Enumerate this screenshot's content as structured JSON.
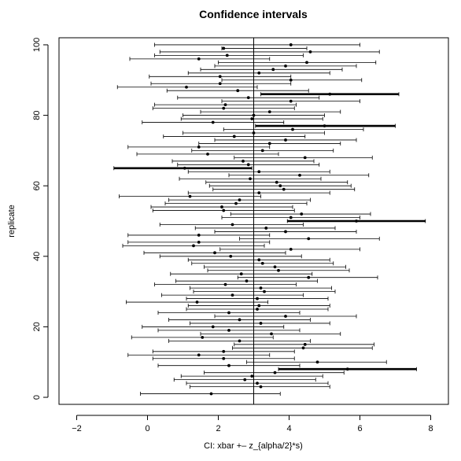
{
  "chart_data": {
    "type": "interval",
    "title": "Confidence intervals",
    "xlabel": "CI:  xbar +– z_{alpha/2}*s)",
    "ylabel": "replicate",
    "xlim": [
      -2.5,
      8.5
    ],
    "ylim": [
      -2,
      102
    ],
    "x_ticks": [
      -2,
      0,
      2,
      4,
      6,
      8
    ],
    "y_ticks": [
      0,
      20,
      40,
      60,
      80,
      100
    ],
    "reference_line": 3,
    "grid": false,
    "intervals": [
      {
        "replicate": 100,
        "low": 0.2,
        "center": 4.05,
        "high": 6.0,
        "misses": false
      },
      {
        "replicate": 99,
        "low": 2.1,
        "center": 2.15,
        "high": 4.5,
        "misses": false
      },
      {
        "replicate": 98,
        "low": 0.35,
        "center": 4.6,
        "high": 6.55,
        "misses": false
      },
      {
        "replicate": 97,
        "low": 0.2,
        "center": 2.25,
        "high": 4.4,
        "misses": false
      },
      {
        "replicate": 96,
        "low": -0.5,
        "center": 1.45,
        "high": 3.45,
        "misses": false
      },
      {
        "replicate": 95,
        "low": 2.0,
        "center": 4.5,
        "high": 6.45,
        "misses": false
      },
      {
        "replicate": 94,
        "low": 1.9,
        "center": 3.9,
        "high": 5.9,
        "misses": false
      },
      {
        "replicate": 93,
        "low": 1.5,
        "center": 3.55,
        "high": 5.5,
        "misses": false
      },
      {
        "replicate": 92,
        "low": 1.15,
        "center": 3.15,
        "high": 5.15,
        "misses": false
      },
      {
        "replicate": 91,
        "low": 0.05,
        "center": 2.05,
        "high": 4.05,
        "misses": false
      },
      {
        "replicate": 90,
        "low": 2.1,
        "center": 4.05,
        "high": 6.05,
        "misses": false
      },
      {
        "replicate": 89,
        "low": 0.1,
        "center": 2.05,
        "high": 4.05,
        "misses": false
      },
      {
        "replicate": 88,
        "low": -0.85,
        "center": 1.1,
        "high": 3.1,
        "misses": false
      },
      {
        "replicate": 87,
        "low": 0.55,
        "center": 2.55,
        "high": 4.55,
        "misses": false
      },
      {
        "replicate": 86,
        "low": 3.2,
        "center": 5.15,
        "high": 7.1,
        "misses": true
      },
      {
        "replicate": 85,
        "low": 0.85,
        "center": 2.85,
        "high": 4.85,
        "misses": false
      },
      {
        "replicate": 84,
        "low": 2.1,
        "center": 4.05,
        "high": 6.0,
        "misses": false
      },
      {
        "replicate": 83,
        "low": 0.2,
        "center": 2.2,
        "high": 4.2,
        "misses": false
      },
      {
        "replicate": 82,
        "low": 0.15,
        "center": 2.15,
        "high": 4.15,
        "misses": false
      },
      {
        "replicate": 81,
        "low": 1.5,
        "center": 3.45,
        "high": 5.45,
        "misses": false
      },
      {
        "replicate": 80,
        "low": 1.0,
        "center": 3.0,
        "high": 5.0,
        "misses": false
      },
      {
        "replicate": 79,
        "low": 0.95,
        "center": 2.95,
        "high": 4.95,
        "misses": false
      },
      {
        "replicate": 78,
        "low": -0.15,
        "center": 1.85,
        "high": 3.85,
        "misses": false
      },
      {
        "replicate": 77,
        "low": 3.05,
        "center": 5.0,
        "high": 7.0,
        "misses": true
      },
      {
        "replicate": 76,
        "low": 2.15,
        "center": 4.1,
        "high": 6.1,
        "misses": false
      },
      {
        "replicate": 75,
        "low": 1.0,
        "center": 3.0,
        "high": 5.0,
        "misses": false
      },
      {
        "replicate": 74,
        "low": 0.45,
        "center": 2.45,
        "high": 4.45,
        "misses": false
      },
      {
        "replicate": 73,
        "low": 1.9,
        "center": 3.9,
        "high": 5.9,
        "misses": false
      },
      {
        "replicate": 72,
        "low": 1.45,
        "center": 3.45,
        "high": 5.45,
        "misses": false
      },
      {
        "replicate": 71,
        "low": -0.55,
        "center": 1.45,
        "high": 3.45,
        "misses": false
      },
      {
        "replicate": 70,
        "low": 1.25,
        "center": 3.25,
        "high": 5.25,
        "misses": false
      },
      {
        "replicate": 69,
        "low": -0.3,
        "center": 1.7,
        "high": 3.7,
        "misses": false
      },
      {
        "replicate": 68,
        "low": 2.45,
        "center": 4.45,
        "high": 6.35,
        "misses": false
      },
      {
        "replicate": 67,
        "low": 0.7,
        "center": 2.7,
        "high": 4.7,
        "misses": false
      },
      {
        "replicate": 66,
        "low": 0.85,
        "center": 2.85,
        "high": 4.85,
        "misses": false
      },
      {
        "replicate": 65,
        "low": -0.95,
        "center": 1.05,
        "high": 2.95,
        "misses": true
      },
      {
        "replicate": 64,
        "low": 1.15,
        "center": 3.15,
        "high": 5.15,
        "misses": false
      },
      {
        "replicate": 63,
        "low": 2.3,
        "center": 4.3,
        "high": 6.25,
        "misses": false
      },
      {
        "replicate": 62,
        "low": 0.9,
        "center": 2.9,
        "high": 4.9,
        "misses": false
      },
      {
        "replicate": 61,
        "low": 1.65,
        "center": 3.65,
        "high": 5.65,
        "misses": false
      },
      {
        "replicate": 60,
        "low": 1.75,
        "center": 3.75,
        "high": 5.75,
        "misses": false
      },
      {
        "replicate": 59,
        "low": 1.85,
        "center": 3.85,
        "high": 5.85,
        "misses": false
      },
      {
        "replicate": 58,
        "low": 1.15,
        "center": 3.15,
        "high": 5.15,
        "misses": false
      },
      {
        "replicate": 57,
        "low": -0.8,
        "center": 1.2,
        "high": 3.2,
        "misses": false
      },
      {
        "replicate": 56,
        "low": 0.6,
        "center": 2.6,
        "high": 4.6,
        "misses": false
      },
      {
        "replicate": 55,
        "low": 0.5,
        "center": 2.5,
        "high": 4.5,
        "misses": false
      },
      {
        "replicate": 54,
        "low": 0.1,
        "center": 2.1,
        "high": 4.1,
        "misses": false
      },
      {
        "replicate": 53,
        "low": 0.15,
        "center": 2.15,
        "high": 4.15,
        "misses": false
      },
      {
        "replicate": 52,
        "low": 2.35,
        "center": 4.35,
        "high": 6.3,
        "misses": false
      },
      {
        "replicate": 51,
        "low": 2.1,
        "center": 4.05,
        "high": 6.0,
        "misses": false
      },
      {
        "replicate": 50,
        "low": 3.95,
        "center": 5.9,
        "high": 7.85,
        "misses": true
      },
      {
        "replicate": 49,
        "low": 0.35,
        "center": 2.4,
        "high": 4.4,
        "misses": false
      },
      {
        "replicate": 48,
        "low": 1.35,
        "center": 3.35,
        "high": 5.3,
        "misses": false
      },
      {
        "replicate": 47,
        "low": 1.9,
        "center": 3.9,
        "high": 5.9,
        "misses": false
      },
      {
        "replicate": 46,
        "low": -0.55,
        "center": 1.45,
        "high": 3.45,
        "misses": false
      },
      {
        "replicate": 45,
        "low": 2.6,
        "center": 4.55,
        "high": 6.55,
        "misses": false
      },
      {
        "replicate": 44,
        "low": -0.55,
        "center": 1.45,
        "high": 3.45,
        "misses": false
      },
      {
        "replicate": 43,
        "low": -0.7,
        "center": 1.3,
        "high": 3.3,
        "misses": false
      },
      {
        "replicate": 42,
        "low": 2.05,
        "center": 4.05,
        "high": 6.0,
        "misses": false
      },
      {
        "replicate": 41,
        "low": -0.1,
        "center": 1.9,
        "high": 3.9,
        "misses": false
      },
      {
        "replicate": 40,
        "low": 0.35,
        "center": 2.35,
        "high": 4.35,
        "misses": false
      },
      {
        "replicate": 39,
        "low": 1.15,
        "center": 3.15,
        "high": 5.15,
        "misses": false
      },
      {
        "replicate": 38,
        "low": 1.25,
        "center": 3.25,
        "high": 5.25,
        "misses": false
      },
      {
        "replicate": 37,
        "low": 1.6,
        "center": 3.6,
        "high": 5.6,
        "misses": false
      },
      {
        "replicate": 36,
        "low": 1.7,
        "center": 3.7,
        "high": 5.7,
        "misses": false
      },
      {
        "replicate": 35,
        "low": 0.65,
        "center": 2.65,
        "high": 4.65,
        "misses": false
      },
      {
        "replicate": 34,
        "low": 2.55,
        "center": 4.55,
        "high": 6.5,
        "misses": false
      },
      {
        "replicate": 33,
        "low": 0.8,
        "center": 2.8,
        "high": 4.8,
        "misses": false
      },
      {
        "replicate": 32,
        "low": 0.2,
        "center": 2.2,
        "high": 4.2,
        "misses": false
      },
      {
        "replicate": 31,
        "low": 1.2,
        "center": 3.2,
        "high": 5.2,
        "misses": false
      },
      {
        "replicate": 30,
        "low": 1.3,
        "center": 3.3,
        "high": 5.3,
        "misses": false
      },
      {
        "replicate": 29,
        "low": 0.4,
        "center": 2.4,
        "high": 4.4,
        "misses": false
      },
      {
        "replicate": 28,
        "low": 1.1,
        "center": 3.1,
        "high": 5.1,
        "misses": false
      },
      {
        "replicate": 27,
        "low": -0.6,
        "center": 1.4,
        "high": 3.4,
        "misses": false
      },
      {
        "replicate": 26,
        "low": 1.15,
        "center": 3.15,
        "high": 5.15,
        "misses": false
      },
      {
        "replicate": 25,
        "low": 1.1,
        "center": 3.1,
        "high": 5.1,
        "misses": false
      },
      {
        "replicate": 24,
        "low": 0.3,
        "center": 2.3,
        "high": 4.3,
        "misses": false
      },
      {
        "replicate": 23,
        "low": 1.9,
        "center": 3.9,
        "high": 5.9,
        "misses": false
      },
      {
        "replicate": 22,
        "low": 0.6,
        "center": 2.6,
        "high": 4.6,
        "misses": false
      },
      {
        "replicate": 21,
        "low": 1.2,
        "center": 3.2,
        "high": 5.15,
        "misses": false
      },
      {
        "replicate": 20,
        "low": -0.15,
        "center": 1.85,
        "high": 3.85,
        "misses": false
      },
      {
        "replicate": 19,
        "low": 0.3,
        "center": 2.3,
        "high": 4.3,
        "misses": false
      },
      {
        "replicate": 18,
        "low": 1.5,
        "center": 3.5,
        "high": 5.45,
        "misses": false
      },
      {
        "replicate": 17,
        "low": -0.45,
        "center": 1.55,
        "high": 3.55,
        "misses": false
      },
      {
        "replicate": 16,
        "low": 0.6,
        "center": 2.6,
        "high": 4.6,
        "misses": false
      },
      {
        "replicate": 15,
        "low": 2.45,
        "center": 4.45,
        "high": 6.4,
        "misses": false
      },
      {
        "replicate": 14,
        "low": 2.4,
        "center": 4.4,
        "high": 6.35,
        "misses": false
      },
      {
        "replicate": 13,
        "low": 0.15,
        "center": 2.15,
        "high": 4.15,
        "misses": false
      },
      {
        "replicate": 12,
        "low": -0.55,
        "center": 1.45,
        "high": 3.45,
        "misses": false
      },
      {
        "replicate": 11,
        "low": 0.15,
        "center": 2.15,
        "high": 4.15,
        "misses": false
      },
      {
        "replicate": 10,
        "low": 2.8,
        "center": 4.8,
        "high": 6.75,
        "misses": false
      },
      {
        "replicate": 9,
        "low": 0.3,
        "center": 2.3,
        "high": 4.3,
        "misses": false
      },
      {
        "replicate": 8,
        "low": 3.7,
        "center": 5.65,
        "high": 7.6,
        "misses": true
      },
      {
        "replicate": 7,
        "low": 1.6,
        "center": 3.6,
        "high": 5.55,
        "misses": false
      },
      {
        "replicate": 6,
        "low": 0.95,
        "center": 2.95,
        "high": 4.95,
        "misses": false
      },
      {
        "replicate": 5,
        "low": 0.75,
        "center": 2.75,
        "high": 4.75,
        "misses": false
      },
      {
        "replicate": 4,
        "low": 1.1,
        "center": 3.1,
        "high": 5.1,
        "misses": false
      },
      {
        "replicate": 3,
        "low": 1.2,
        "center": 3.2,
        "high": 5.15,
        "misses": false
      },
      {
        "replicate": 1,
        "low": -0.2,
        "center": 1.8,
        "high": 3.75,
        "misses": false
      }
    ]
  }
}
